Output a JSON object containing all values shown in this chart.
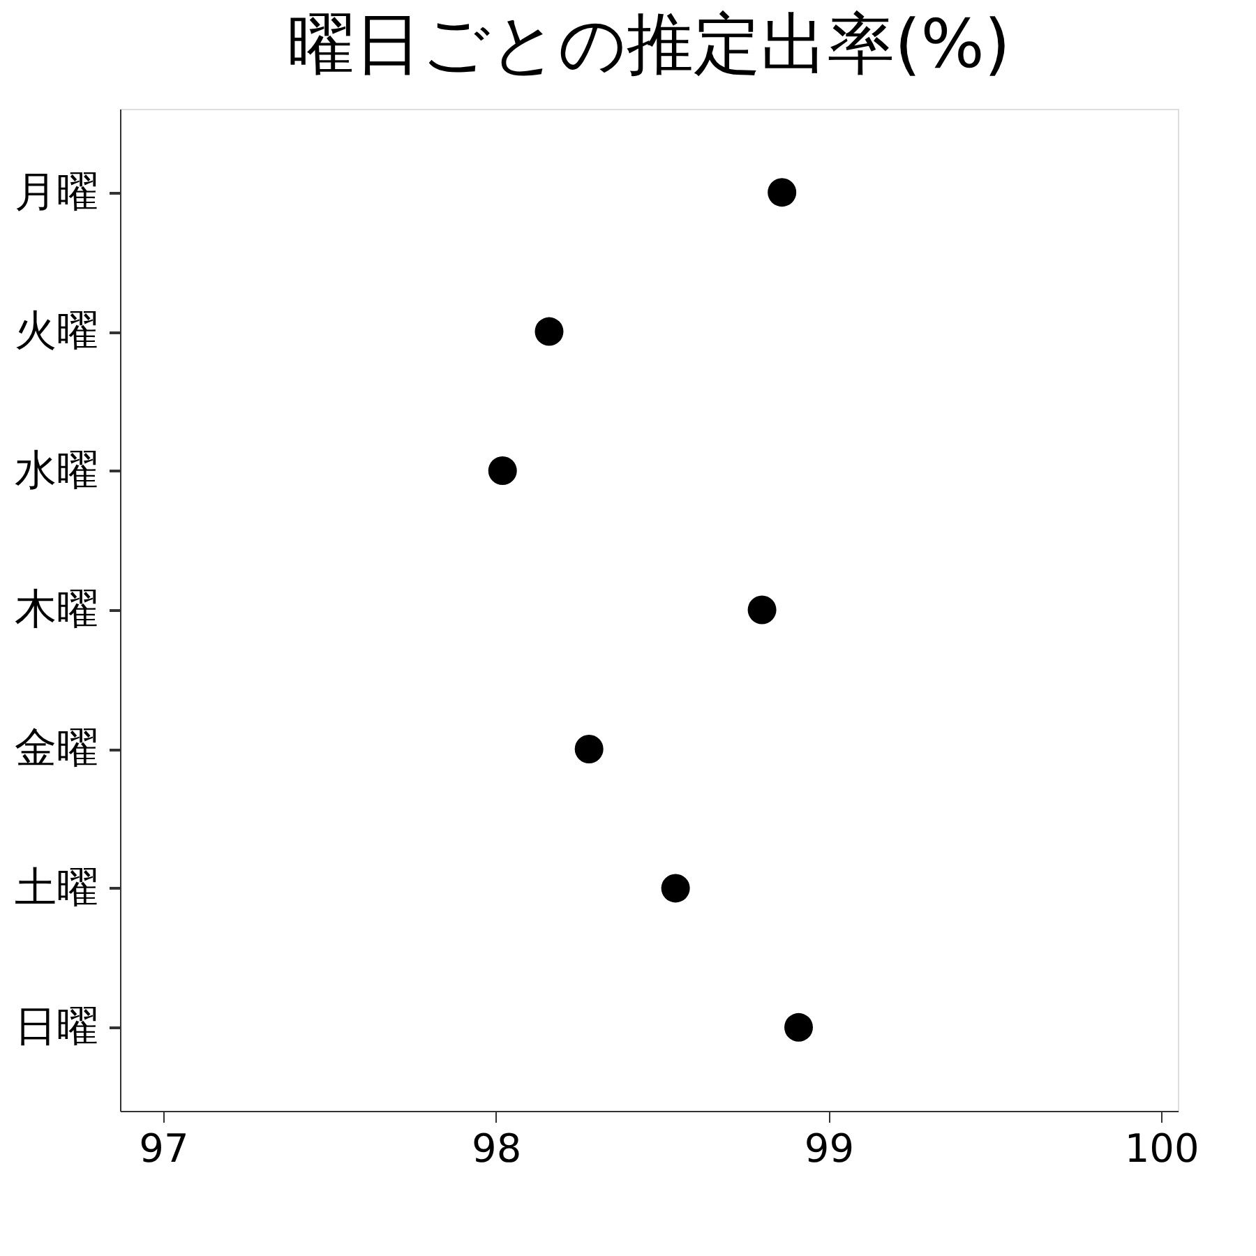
{
  "chart_data": {
    "type": "scatter",
    "orientation": "horizontal",
    "title": "曜日ごとの推定出率(%)",
    "categories": [
      "月曜",
      "火曜",
      "水曜",
      "木曜",
      "金曜",
      "土曜",
      "日曜"
    ],
    "values": [
      98.86,
      98.16,
      98.02,
      98.8,
      98.28,
      98.54,
      98.91
    ],
    "color": "#000000",
    "marker": "circle",
    "xlim": [
      96.87,
      100.05
    ],
    "xticks": [
      97,
      98,
      99,
      100
    ],
    "grid": false
  }
}
